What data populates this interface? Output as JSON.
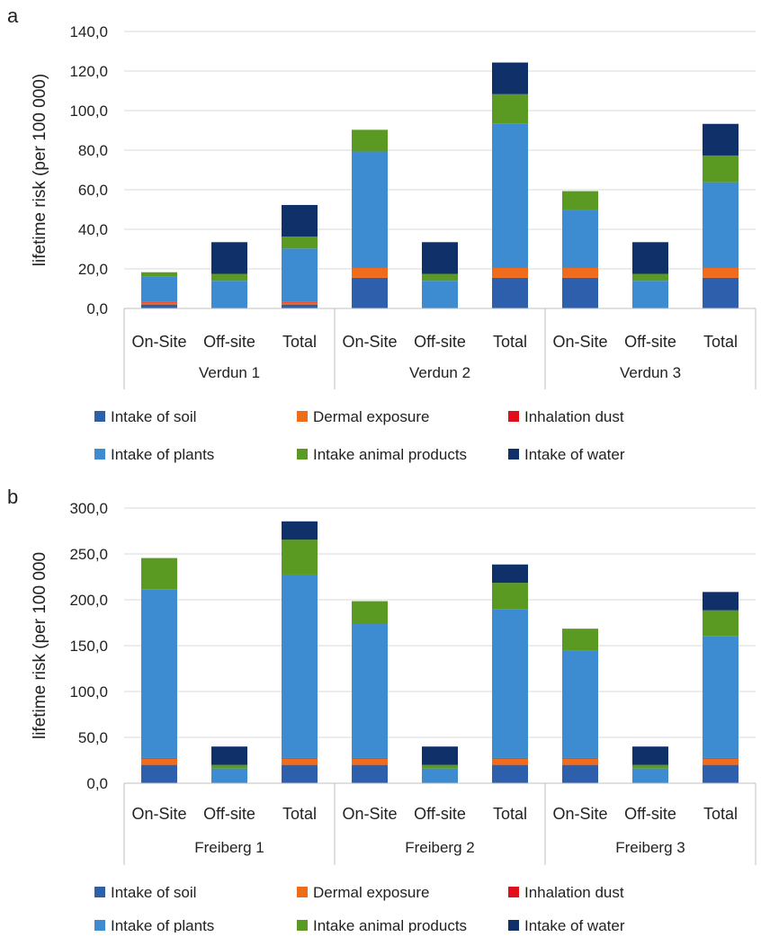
{
  "chart_data": [
    {
      "type": "bar",
      "stacked": true,
      "panel_label": "a",
      "ylabel": "lifetime risk (per 100 000)",
      "ylim": [
        0,
        140
      ],
      "yticks": [
        "0,0",
        "20,0",
        "40,0",
        "60,0",
        "80,0",
        "100,0",
        "120,0",
        "140,0"
      ],
      "grid": true,
      "legend_position": "bottom",
      "groups": [
        "Verdun 1",
        "Verdun 2",
        "Verdun 3"
      ],
      "categories": [
        "On-Site",
        "Off-site",
        "Total",
        "On-Site",
        "Off-site",
        "Total",
        "On-Site",
        "Off-site",
        "Total"
      ],
      "series": [
        {
          "name": "Intake of soil",
          "color": "#2e5fac",
          "values": [
            2,
            0,
            2,
            15.5,
            0,
            15.5,
            15.5,
            0,
            15.5
          ]
        },
        {
          "name": "Dermal exposure",
          "color": "#f06c1c",
          "values": [
            1,
            0,
            1,
            5,
            0,
            5,
            5,
            0,
            5
          ]
        },
        {
          "name": "Inhalation dust",
          "color": "#e0101a",
          "values": [
            0.3,
            0,
            0.3,
            0.3,
            0,
            0.3,
            0.3,
            0,
            0.3
          ]
        },
        {
          "name": "Intake of plants",
          "color": "#3d8bd0",
          "values": [
            13,
            14,
            27,
            58.5,
            14,
            72.5,
            29,
            14,
            43
          ]
        },
        {
          "name": "Intake animal products",
          "color": "#5a9a22",
          "values": [
            2,
            3.5,
            6,
            11,
            3.5,
            15,
            9.5,
            3.5,
            13.5
          ]
        },
        {
          "name": "Intake of water",
          "color": "#10306a",
          "values": [
            0,
            16,
            16,
            0,
            16,
            16,
            0,
            16,
            16
          ]
        }
      ]
    },
    {
      "type": "bar",
      "stacked": true,
      "panel_label": "b",
      "ylabel": "lifetime risk (per 100 000",
      "ylim": [
        0,
        300
      ],
      "yticks": [
        "0,0",
        "50,0",
        "100,0",
        "150,0",
        "200,0",
        "250,0",
        "300,0"
      ],
      "grid": true,
      "legend_position": "bottom",
      "groups": [
        "Freiberg 1",
        "Freiberg 2",
        "Freiberg 3"
      ],
      "categories": [
        "On-Site",
        "Off-site",
        "Total",
        "On-Site",
        "Off-site",
        "Total",
        "On-Site",
        "Off-site",
        "Total"
      ],
      "series": [
        {
          "name": "Intake of soil",
          "color": "#2e5fac",
          "values": [
            20,
            0,
            20,
            20,
            0,
            20,
            20,
            0,
            20
          ]
        },
        {
          "name": "Dermal exposure",
          "color": "#f06c1c",
          "values": [
            7,
            0,
            7,
            7,
            0,
            7,
            7,
            0,
            7
          ]
        },
        {
          "name": "Inhalation dust",
          "color": "#e0101a",
          "values": [
            0.5,
            0,
            0.5,
            0.5,
            0,
            0.5,
            0.5,
            0,
            0.5
          ]
        },
        {
          "name": "Intake of plants",
          "color": "#3d8bd0",
          "values": [
            184,
            16,
            200,
            146,
            16,
            162,
            117,
            16,
            133
          ]
        },
        {
          "name": "Intake animal products",
          "color": "#5a9a22",
          "values": [
            34,
            4,
            38,
            25,
            4,
            29,
            24,
            4,
            28
          ]
        },
        {
          "name": "Intake of water",
          "color": "#10306a",
          "values": [
            0,
            20,
            20,
            0,
            20,
            20,
            0,
            20,
            20
          ]
        }
      ]
    }
  ]
}
